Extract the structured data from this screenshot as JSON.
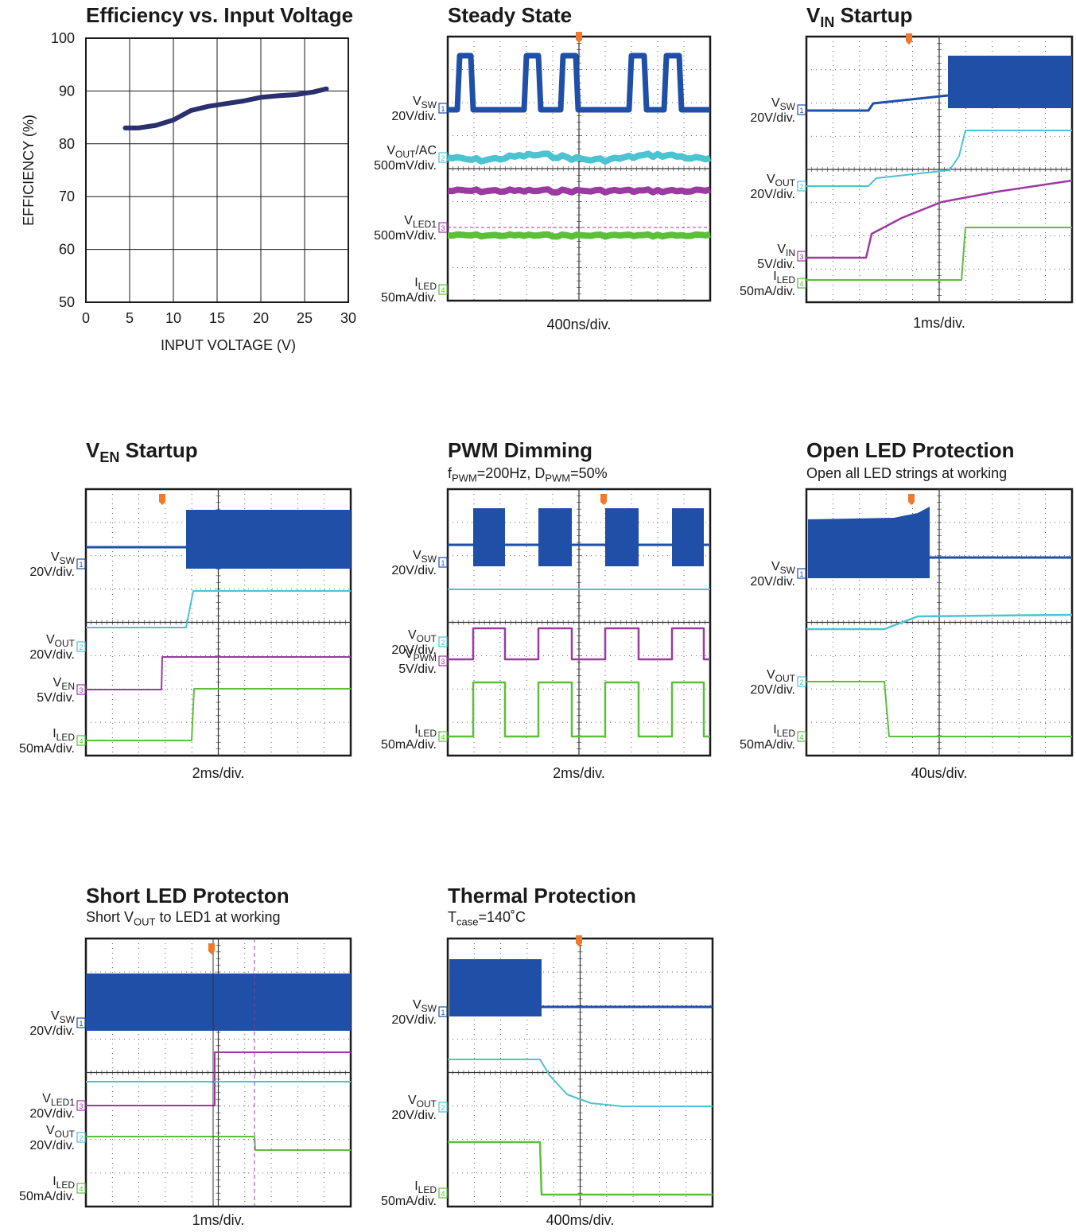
{
  "colors": {
    "vsw": "#1f4fa6",
    "cyan": "#4cc3d1",
    "magenta": "#9b3aa0",
    "green": "#5cbf3a",
    "trigger": "#f07a2c",
    "curve": "#2a2f6e"
  },
  "chart_data": [
    {
      "type": "line",
      "title": "Efficiency vs. Input Voltage",
      "xlabel": "INPUT VOLTAGE (V)",
      "ylabel": "EFFICIENCY (%)",
      "xlim": [
        0,
        30
      ],
      "ylim": [
        50,
        100
      ],
      "xticks": [
        "0",
        "5",
        "10",
        "15",
        "20",
        "25",
        "30"
      ],
      "yticks": [
        "50",
        "60",
        "70",
        "80",
        "90",
        "100"
      ],
      "grid": true,
      "x": [
        4.5,
        6,
        8,
        10,
        12,
        14,
        16,
        18,
        20,
        22,
        24,
        26,
        27.5
      ],
      "y": [
        83,
        83,
        83.5,
        84.5,
        86.3,
        87.1,
        87.6,
        88.1,
        88.8,
        89.1,
        89.3,
        89.8,
        90.4
      ]
    },
    {
      "type": "scope",
      "title": "Steady State",
      "subtitle": "",
      "timebase": "400ns/div.",
      "channels": [
        {
          "name": "V",
          "sub": "SW",
          "scale": "20V/div.",
          "marker": "1"
        },
        {
          "name": "V",
          "sub": "OUT",
          "suffix": "/AC",
          "scale": "500mV/div.",
          "marker": "2"
        },
        {
          "name": "V",
          "sub": "LED1",
          "scale": "500mV/div.",
          "marker": "3"
        },
        {
          "name": "I",
          "sub": "LED",
          "scale": "50mA/div.",
          "marker": "4"
        }
      ]
    },
    {
      "type": "scope",
      "title": "V",
      "title_sub": "IN",
      "title_suffix": " Startup",
      "subtitle": "",
      "timebase": "1ms/div.",
      "channels": [
        {
          "name": "V",
          "sub": "SW",
          "scale": "20V/div.",
          "marker": "1"
        },
        {
          "name": "V",
          "sub": "OUT",
          "scale": "20V/div.",
          "marker": "2"
        },
        {
          "name": "V",
          "sub": "IN",
          "scale": "5V/div.",
          "marker": "3"
        },
        {
          "name": "I",
          "sub": "LED",
          "scale": "50mA/div.",
          "marker": "4"
        }
      ]
    },
    {
      "type": "scope",
      "title": "V",
      "title_sub": "EN",
      "title_suffix": " Startup",
      "subtitle": "",
      "timebase": "2ms/div.",
      "channels": [
        {
          "name": "V",
          "sub": "SW",
          "scale": "20V/div.",
          "marker": "1"
        },
        {
          "name": "V",
          "sub": "OUT",
          "scale": "20V/div.",
          "marker": "2"
        },
        {
          "name": "V",
          "sub": "EN",
          "scale": "5V/div.",
          "marker": "3"
        },
        {
          "name": "I",
          "sub": "LED",
          "scale": "50mA/div.",
          "marker": "4"
        }
      ]
    },
    {
      "type": "scope",
      "title": "PWM Dimming",
      "subtitle_parts": [
        "f",
        "PWM",
        "=200Hz, D",
        "PWM",
        "=50%"
      ],
      "timebase": "2ms/div.",
      "channels": [
        {
          "name": "V",
          "sub": "SW",
          "scale": "20V/div.",
          "marker": "1"
        },
        {
          "name": "V",
          "sub": "OUT",
          "scale": "20V/div.",
          "marker": "2"
        },
        {
          "name": "V",
          "sub": "PWM",
          "scale": "5V/div.",
          "marker": "3"
        },
        {
          "name": "I",
          "sub": "LED",
          "scale": "50mA/div.",
          "marker": "4"
        }
      ]
    },
    {
      "type": "scope",
      "title": "Open LED Protection",
      "subtitle": "Open all LED strings at working",
      "timebase": "40us/div.",
      "channels": [
        {
          "name": "V",
          "sub": "SW",
          "scale": "20V/div.",
          "marker": "1"
        },
        {
          "name": "V",
          "sub": "OUT",
          "scale": "20V/div.",
          "marker": "2"
        },
        {
          "name": "I",
          "sub": "LED",
          "scale": "50mA/div.",
          "marker": "4"
        }
      ]
    },
    {
      "type": "scope",
      "title": "Short LED Protecton",
      "subtitle_parts": [
        "Short V",
        "OUT",
        " to LED1 at working"
      ],
      "timebase": "1ms/div.",
      "channels": [
        {
          "name": "V",
          "sub": "SW",
          "scale": "20V/div.",
          "marker": "1"
        },
        {
          "name": "V",
          "sub": "LED1",
          "scale": "20V/div.",
          "marker": "3"
        },
        {
          "name": "V",
          "sub": "OUT",
          "scale": "20V/div.",
          "marker": "2"
        },
        {
          "name": "I",
          "sub": "LED",
          "scale": "50mA/div.",
          "marker": "4"
        }
      ]
    },
    {
      "type": "scope",
      "title": "Thermal Protection",
      "subtitle_parts": [
        "T",
        "case",
        "=140˚C"
      ],
      "timebase": "400ms/div.",
      "channels": [
        {
          "name": "V",
          "sub": "SW",
          "scale": "20V/div.",
          "marker": "1"
        },
        {
          "name": "V",
          "sub": "OUT",
          "scale": "20V/div.",
          "marker": "2"
        },
        {
          "name": "I",
          "sub": "LED",
          "scale": "50mA/div.",
          "marker": "4"
        }
      ]
    }
  ]
}
